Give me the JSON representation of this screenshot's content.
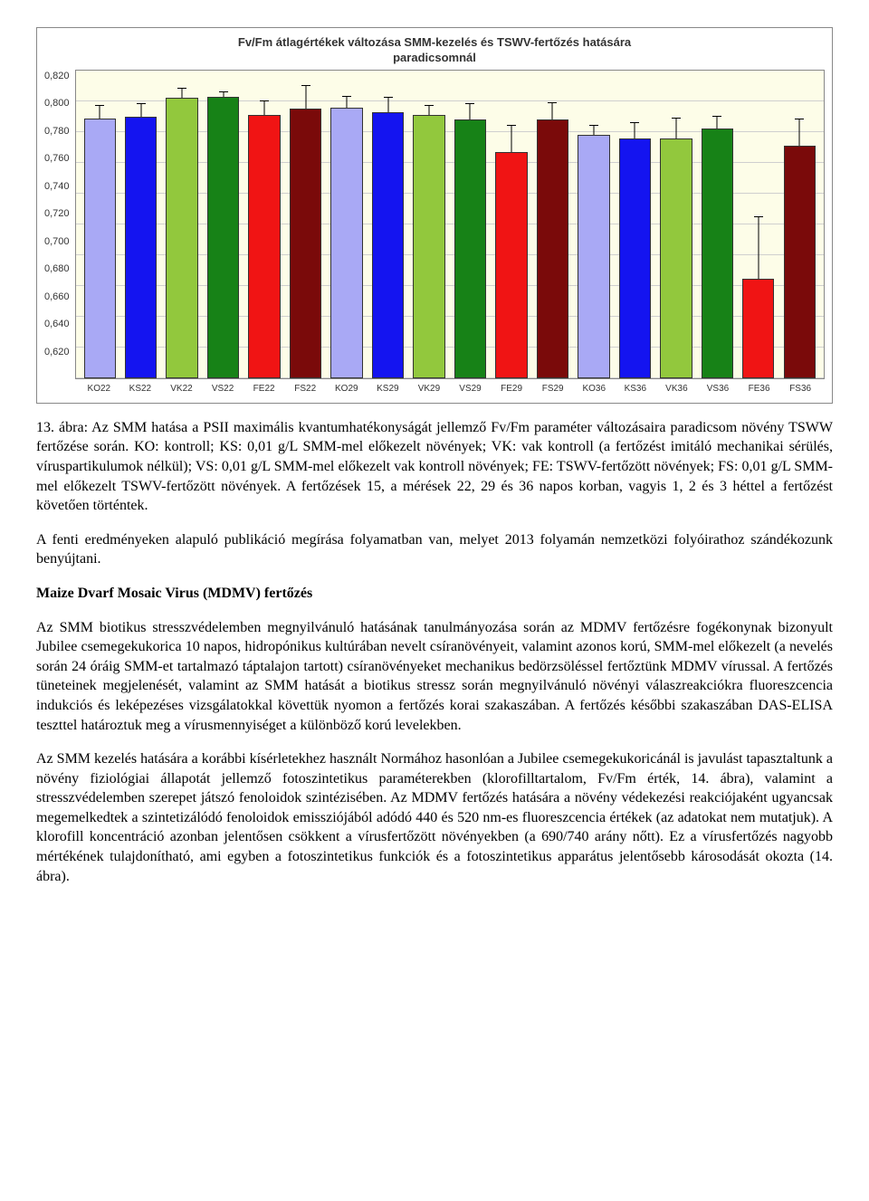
{
  "chart": {
    "type": "bar",
    "title_line1": "Fv/Fm átlagértékek változása SMM-kezelés és TSWV-fertőzés hatására",
    "title_line2": "paradicsomnál",
    "title_fontsize": 13,
    "background_color": "#fdfde8",
    "grid_color": "#cfcfcf",
    "border_color": "#888888",
    "ylim": [
      0.62,
      0.82
    ],
    "ytick_step": 0.02,
    "yticks": [
      "0,820",
      "0,800",
      "0,780",
      "0,760",
      "0,740",
      "0,720",
      "0,700",
      "0,680",
      "0,660",
      "0,640",
      "0,620"
    ],
    "label_fontsize": 11,
    "categories": [
      "KO22",
      "KS22",
      "VK22",
      "VS22",
      "FE22",
      "FS22",
      "KO29",
      "KS29",
      "VK29",
      "VS29",
      "FE29",
      "FS29",
      "KO36",
      "KS36",
      "VK36",
      "VS36",
      "FE36",
      "FS36"
    ],
    "values": [
      0.789,
      0.79,
      0.802,
      0.803,
      0.791,
      0.795,
      0.796,
      0.793,
      0.791,
      0.788,
      0.767,
      0.788,
      0.778,
      0.776,
      0.776,
      0.782,
      0.685,
      0.771
    ],
    "errors": [
      0.008,
      0.008,
      0.006,
      0.003,
      0.009,
      0.015,
      0.007,
      0.009,
      0.006,
      0.01,
      0.017,
      0.011,
      0.006,
      0.01,
      0.013,
      0.008,
      0.04,
      0.017
    ],
    "bar_colors": [
      "#a9a9f5",
      "#1414f0",
      "#92c83d",
      "#178217",
      "#f01414",
      "#7a0a0a",
      "#a9a9f5",
      "#1414f0",
      "#92c83d",
      "#178217",
      "#f01414",
      "#7a0a0a",
      "#a9a9f5",
      "#1414f0",
      "#92c83d",
      "#178217",
      "#f01414",
      "#7a0a0a"
    ],
    "bar_width": 0.78
  },
  "caption": "13. ábra: Az SMM hatása a PSII maximális kvantumhatékonyságát jellemző Fv/Fm paraméter változásaira paradicsom növény TSWW fertőzése során. KO: kontroll; KS: 0,01 g/L SMM-mel előkezelt növények; VK: vak kontroll (a fertőzést imitáló mechanikai sérülés, víruspartikulumok nélkül); VS: 0,01 g/L SMM-mel előkezelt vak kontroll növények; FE: TSWV-fertőzött növények; FS: 0,01 g/L SMM-mel előkezelt TSWV-fertőzött növények. A fertőzések 15, a mérések 22, 29 és 36 napos korban, vagyis 1, 2 és 3 héttel a fertőzést követően történtek.",
  "para1": "A fenti eredményeken alapuló publikáció megírása folyamatban van, melyet 2013 folyamán nemzetközi folyóirathoz szándékozunk benyújtani.",
  "section_heading": "Maize Dvarf Mosaic Virus (MDMV) fertőzés",
  "para2": "Az SMM biotikus stresszvédelemben megnyilvánuló hatásának tanulmányozása során az MDMV fertőzésre fogékonynak bizonyult Jubilee csemegekukorica 10 napos, hidropónikus kultúrában nevelt csíranövényeit, valamint azonos korú, SMM-mel előkezelt (a nevelés során 24 óráig SMM-et tartalmazó táptalajon tartott) csíranövényeket mechanikus bedörzsöléssel fertőztünk MDMV vírussal. A fertőzés tüneteinek megjelenését, valamint az SMM hatását a biotikus stressz során megnyilvánuló növényi válaszreakciókra fluoreszcencia indukciós és leképezéses vizsgálatokkal követtük nyomon a fertőzés korai szakaszában. A fertőzés későbbi szakaszában DAS-ELISA teszttel határoztuk meg a vírusmennyiséget a különböző korú levelekben.",
  "para3": "Az SMM kezelés hatására a korábbi kísérletekhez használt Normához hasonlóan a Jubilee csemegekukoricánál is javulást tapasztaltunk a növény fiziológiai állapotát jellemző fotoszintetikus paraméterekben (klorofilltartalom, Fv/Fm érték, 14. ábra), valamint a stresszvédelemben szerepet játszó fenoloidok szintézisében. Az MDMV fertőzés hatására a növény védekezési reakciójaként ugyancsak megemelkedtek a szintetizálódó fenoloidok emissziójából adódó 440 és 520 nm-es fluoreszcencia értékek (az adatokat nem mutatjuk). A klorofill koncentráció azonban jelentősen csökkent a vírusfertőzött növényekben (a 690/740 arány nőtt). Ez a vírusfertőzés nagyobb mértékének tulajdonítható, ami egyben a fotoszintetikus funkciók és a fotoszintetikus apparátus jelentősebb károsodását okozta (14. ábra)."
}
